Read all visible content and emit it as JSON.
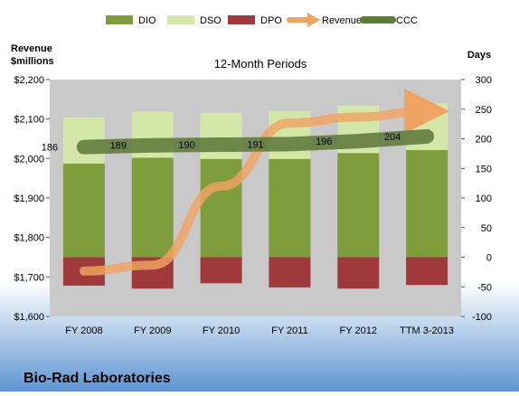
{
  "chart_data": {
    "type": "bar",
    "subtitle": "12-Month Periods",
    "footer_title": "Bio-Rad Laboratories",
    "left_axis_title": [
      "Revenue",
      "$millions"
    ],
    "right_axis_title": "Days",
    "categories": [
      "FY 2008",
      "FY 2009",
      "FY 2010",
      "FY 2011",
      "FY 2012",
      "TTM 3-2013"
    ],
    "left_axis": {
      "ylim": [
        1600,
        2200
      ],
      "ticks": [
        1600,
        1700,
        1800,
        1900,
        2000,
        2100,
        2200
      ],
      "tick_labels": [
        "$1,600",
        "$1,700",
        "$1,800",
        "$1,900",
        "$2,000",
        "$2,100",
        "$2,200"
      ]
    },
    "right_axis": {
      "ylim": [
        -100,
        300
      ],
      "ticks": [
        -100,
        -50,
        0,
        50,
        100,
        150,
        200,
        250,
        300
      ],
      "tick_labels": [
        "-100",
        "-50",
        "0",
        "50",
        "100",
        "150",
        "200",
        "250",
        "300"
      ]
    },
    "legend_position": "top",
    "series": [
      {
        "name": "DIO",
        "axis": "right",
        "kind": "stacked-bar",
        "color": "#7f9d3c",
        "values": [
          158,
          168,
          166,
          166,
          176,
          181
        ]
      },
      {
        "name": "DSO",
        "axis": "right",
        "kind": "stacked-bar",
        "color": "#d4e6a8",
        "values": [
          78,
          78,
          78,
          81,
          80,
          79
        ]
      },
      {
        "name": "DPO",
        "axis": "right",
        "kind": "negative-bar",
        "color": "#a0393c",
        "values": [
          -48,
          -53,
          -44,
          -51,
          -53,
          -47
        ]
      },
      {
        "name": "Revenue",
        "axis": "left",
        "kind": "line-arrow",
        "color": "#f0a463",
        "values": [
          1715,
          1730,
          1930,
          2090,
          2105,
          2120
        ]
      },
      {
        "name": "CCC",
        "axis": "right",
        "kind": "line",
        "color": "#5e7a3a",
        "values": [
          186,
          189,
          190,
          191,
          196,
          204
        ],
        "labels": [
          "186",
          "189",
          "190",
          "191",
          "196",
          "204"
        ]
      }
    ]
  }
}
